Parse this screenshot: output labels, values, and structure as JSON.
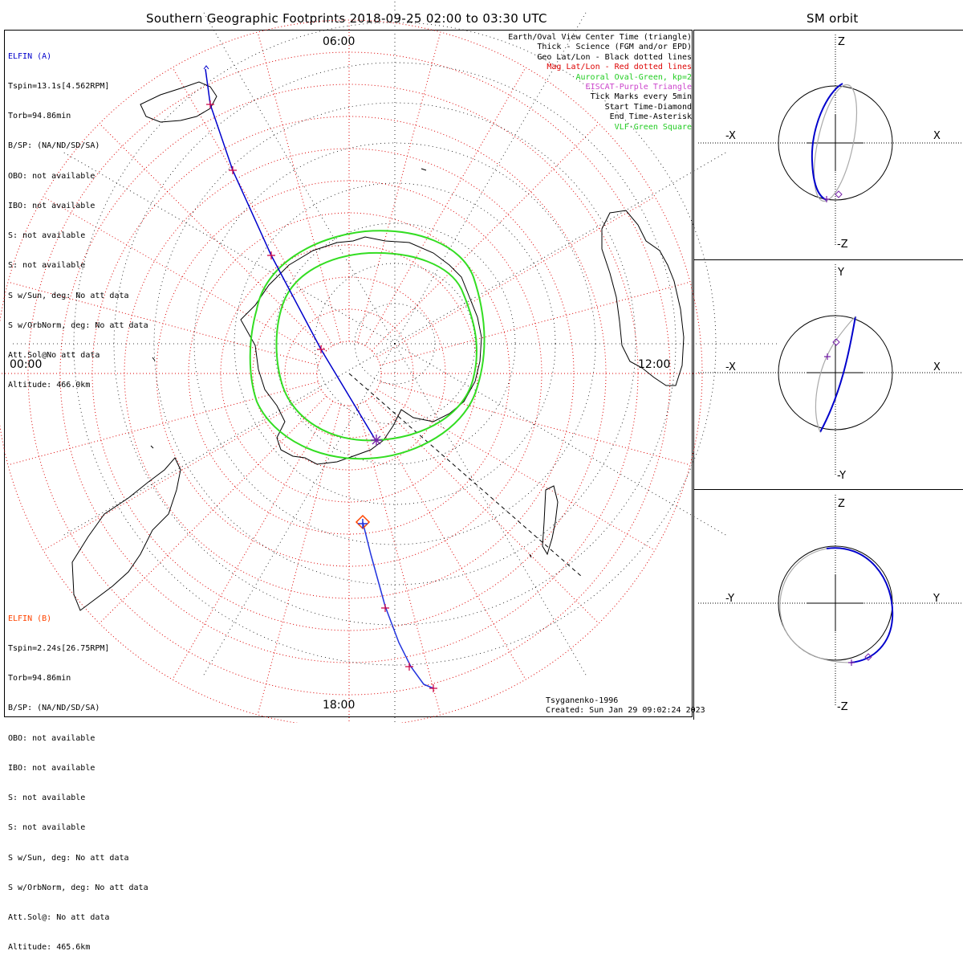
{
  "header": {
    "title": "Southern Geographic Footprints 2018-09-25 02:00 to 03:30 UTC",
    "sm_title": "SM orbit"
  },
  "elfin_a": {
    "name": "ELFIN (A)",
    "color": "#0000cc",
    "lines": [
      "Tspin=13.1s[4.562RPM]",
      "Torb=94.86min",
      "B/SP: (NA/ND/SD/SA)",
      "OBO: not available",
      "IBO: not available",
      "S: not available",
      "S: not available",
      "S w/Sun, deg: No att data",
      "S w/OrbNorm, deg: No att data",
      "Att.Sol@No att data",
      "Altitude: 466.0km"
    ]
  },
  "elfin_b": {
    "name": "ELFIN (B)",
    "color": "#ff4400",
    "lines": [
      "Tspin=2.24s[26.75RPM]",
      "Torb=94.86min",
      "B/SP: (NA/ND/SD/SA)",
      "OBO: not available",
      "IBO: not available",
      "S: not available",
      "S: not available",
      "S w/Sun, deg: No att data",
      "S w/OrbNorm, deg: No att data",
      "Att.Sol@: No att data",
      "Altitude: 465.6km"
    ]
  },
  "legend": [
    {
      "text": "Earth/Oval View Center Time (triangle)",
      "color": "#000000"
    },
    {
      "text": "Thick - Science (FGM and/or EPD)",
      "color": "#000000"
    },
    {
      "text": "Geo Lat/Lon - Black dotted lines",
      "color": "#000000"
    },
    {
      "text": "Mag Lat/Lon - Red dotted lines",
      "color": "#dd0000"
    },
    {
      "text": "Auroral Oval-Green, kp=2",
      "color": "#22cc22"
    },
    {
      "text": "EISCAT-Purple Triangle",
      "color": "#cc44cc"
    },
    {
      "text": "Tick Marks every 5min",
      "color": "#000000"
    },
    {
      "text": "Start Time-Diamond",
      "color": "#000000"
    },
    {
      "text": "End Time-Asterisk",
      "color": "#000000"
    },
    {
      "text": "VLF-Green Square",
      "color": "#22cc22"
    }
  ],
  "clock_labels": {
    "top": "06:00",
    "left": "00:00",
    "right": "12:00",
    "bottom": "18:00"
  },
  "model": "Tsyganenko-1996",
  "created": "Created: Sun Jan 29 09:02:24 2023",
  "sm_panels": [
    {
      "up": "Z",
      "down": "-Z",
      "left": "-X",
      "right": "X"
    },
    {
      "up": "Y",
      "down": "-Y",
      "left": "-X",
      "right": "X"
    },
    {
      "up": "Z",
      "down": "-Z",
      "left": "-Y",
      "right": "Y"
    }
  ],
  "colors": {
    "trackA": "#0000cc",
    "trackB": "#2233dd",
    "magGrid": "#dd0000",
    "oval": "#33dd22",
    "tick": "#cc0044",
    "orbitBack": "#aaaaaa"
  }
}
